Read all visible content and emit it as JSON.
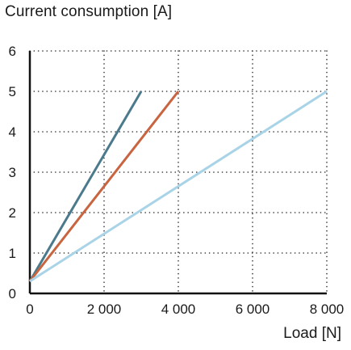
{
  "chart_data": {
    "type": "line",
    "title": "Current consumption [A]",
    "xlabel": "Load [N]",
    "ylabel": "",
    "xlim": [
      0,
      8000
    ],
    "ylim": [
      0,
      6
    ],
    "x_ticks": [
      0,
      2000,
      4000,
      6000,
      8000
    ],
    "x_tick_labels": [
      "0",
      "2 000",
      "4 000",
      "6 000",
      "8 000"
    ],
    "y_ticks": [
      0,
      1,
      2,
      3,
      4,
      5,
      6
    ],
    "y_tick_labels": [
      "0",
      "1",
      "2",
      "3",
      "4",
      "5",
      "6"
    ],
    "grid": "dotted",
    "series": [
      {
        "color": "#4a7a8c",
        "x": [
          0,
          3000
        ],
        "y": [
          0.3,
          5.0
        ]
      },
      {
        "color": "#c8643f",
        "x": [
          0,
          4000
        ],
        "y": [
          0.3,
          5.0
        ]
      },
      {
        "color": "#a9d3e6",
        "x": [
          0,
          8000
        ],
        "y": [
          0.3,
          5.0
        ]
      }
    ]
  }
}
